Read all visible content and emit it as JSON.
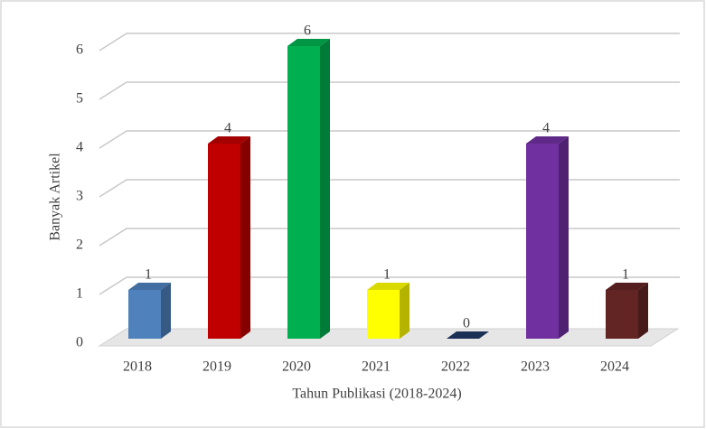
{
  "chart_data": {
    "type": "bar3d",
    "x_label": "Tahun Publikasi (2018-2024)",
    "y_label": "Banyak Artikel",
    "categories": [
      "2018",
      "2019",
      "2020",
      "2021",
      "2022",
      "2023",
      "2024"
    ],
    "values": [
      1,
      4,
      6,
      1,
      0,
      4,
      1
    ],
    "colors": [
      "#4f81bd",
      "#c00000",
      "#00b050",
      "#ffff00",
      "#1f3864",
      "#7030a0",
      "#632523"
    ],
    "ylim": [
      0,
      6
    ],
    "yticks": [
      0,
      1,
      2,
      3,
      4,
      5,
      6
    ],
    "grid": true
  }
}
